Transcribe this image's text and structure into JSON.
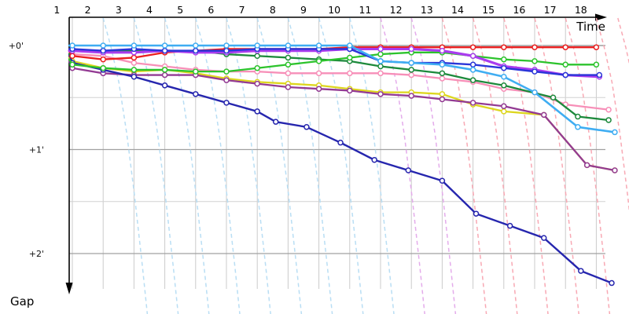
{
  "chart_data": {
    "type": "line",
    "xlabel": "Time",
    "ylabel": "Gap",
    "x_ticks": [
      "1",
      "2",
      "3",
      "4",
      "5",
      "6",
      "7",
      "8",
      "9",
      "10",
      "11",
      "12",
      "13",
      "14",
      "15",
      "16",
      "17",
      "18"
    ],
    "y_ticks": [
      {
        "label": "+0'",
        "seconds": 0
      },
      {
        "label": "+1'",
        "seconds": 60
      },
      {
        "label": "+2'",
        "seconds": 120
      }
    ],
    "y_minor_gridlines_seconds": [
      30,
      90
    ],
    "grid": true,
    "legend": "none",
    "axis_color": "#000000",
    "grid_major_color": "#a0a0a0",
    "grid_minor_color": "#d2d2d2",
    "zero_line_color": "#8a8a8a",
    "x_unit": "lap",
    "y_unit": "gap seconds behind leader",
    "series": [
      {
        "name": "pink",
        "color": "#f78fb8",
        "width": 2.3,
        "points": [
          [
            0.9,
            4
          ],
          [
            1,
            5
          ],
          [
            2,
            6
          ],
          [
            3,
            10
          ],
          [
            4,
            12
          ],
          [
            5,
            14
          ],
          [
            6,
            15
          ],
          [
            7,
            15
          ],
          [
            8,
            16
          ],
          [
            9,
            16
          ],
          [
            10,
            16
          ],
          [
            11,
            16
          ],
          [
            12,
            17
          ],
          [
            13,
            19
          ],
          [
            14,
            21
          ],
          [
            15,
            25
          ],
          [
            16,
            27
          ],
          [
            17,
            34
          ],
          [
            18.4,
            37
          ]
        ]
      },
      {
        "name": "yellow",
        "color": "#ddd61e",
        "width": 2.3,
        "points": [
          [
            0.9,
            7
          ],
          [
            1,
            9
          ],
          [
            2,
            13
          ],
          [
            3,
            15
          ],
          [
            4,
            14
          ],
          [
            5,
            16
          ],
          [
            6,
            19
          ],
          [
            7,
            21
          ],
          [
            8,
            22
          ],
          [
            9,
            23
          ],
          [
            10,
            25
          ],
          [
            11,
            27
          ],
          [
            12,
            27
          ],
          [
            13,
            28
          ],
          [
            14,
            34
          ],
          [
            15,
            38
          ],
          [
            16.3,
            40
          ],
          [
            17.7,
            69
          ],
          [
            18.6,
            72
          ]
        ]
      },
      {
        "name": "purple",
        "color": "#933a93",
        "width": 2.3,
        "points": [
          [
            0.9,
            9
          ],
          [
            1,
            13
          ],
          [
            2,
            16
          ],
          [
            3,
            17
          ],
          [
            4,
            17
          ],
          [
            5,
            17
          ],
          [
            6,
            20
          ],
          [
            7,
            22
          ],
          [
            8,
            24
          ],
          [
            9,
            25
          ],
          [
            10,
            26
          ],
          [
            11,
            28
          ],
          [
            12,
            29
          ],
          [
            13,
            31
          ],
          [
            14,
            33
          ],
          [
            15,
            35
          ],
          [
            16.3,
            40
          ],
          [
            17.7,
            69
          ],
          [
            18.6,
            72
          ]
        ]
      },
      {
        "name": "navy",
        "color": "#2626ae",
        "width": 2.4,
        "points": [
          [
            0.9,
            5
          ],
          [
            1,
            10
          ],
          [
            2,
            14
          ],
          [
            3,
            18
          ],
          [
            4,
            23
          ],
          [
            5,
            28
          ],
          [
            6,
            33
          ],
          [
            7,
            38
          ],
          [
            7.6,
            44
          ],
          [
            8.6,
            47
          ],
          [
            9.7,
            56
          ],
          [
            10.8,
            66
          ],
          [
            11.9,
            72
          ],
          [
            13,
            78
          ],
          [
            14.1,
            97
          ],
          [
            15.2,
            104
          ],
          [
            16.3,
            111
          ],
          [
            17.5,
            130
          ],
          [
            18.5,
            137
          ]
        ]
      },
      {
        "name": "dark-green",
        "color": "#1d8a3c",
        "width": 2.3,
        "points": [
          [
            0.9,
            5
          ],
          [
            1,
            3
          ],
          [
            2,
            3
          ],
          [
            3,
            3
          ],
          [
            4,
            3
          ],
          [
            5,
            3
          ],
          [
            6,
            5
          ],
          [
            7,
            6
          ],
          [
            8,
            7
          ],
          [
            9,
            8
          ],
          [
            10,
            9
          ],
          [
            11,
            12
          ],
          [
            12,
            14
          ],
          [
            13,
            16
          ],
          [
            14,
            20
          ],
          [
            15,
            23
          ],
          [
            16.6,
            30
          ],
          [
            17.4,
            41
          ],
          [
            18.4,
            43
          ]
        ]
      },
      {
        "name": "green",
        "color": "#2cc32c",
        "width": 2.3,
        "points": [
          [
            0.9,
            8
          ],
          [
            1,
            11
          ],
          [
            2,
            13
          ],
          [
            3,
            14
          ],
          [
            4,
            14
          ],
          [
            5,
            15
          ],
          [
            6,
            15
          ],
          [
            7,
            13
          ],
          [
            8,
            11
          ],
          [
            9,
            9
          ],
          [
            10,
            7
          ],
          [
            11,
            5
          ],
          [
            12,
            4
          ],
          [
            13,
            4
          ],
          [
            14,
            6
          ],
          [
            15,
            8
          ],
          [
            16,
            9
          ],
          [
            17,
            11
          ],
          [
            18,
            11
          ]
        ]
      },
      {
        "name": "red",
        "color": "#ea1f1f",
        "width": 2.3,
        "points": [
          [
            0.9,
            3
          ],
          [
            1,
            6
          ],
          [
            2,
            8
          ],
          [
            3,
            7
          ],
          [
            4,
            4
          ],
          [
            5,
            3
          ],
          [
            6,
            2
          ],
          [
            7,
            2
          ],
          [
            8,
            2
          ],
          [
            9,
            2
          ],
          [
            10,
            1
          ],
          [
            11,
            1
          ],
          [
            12,
            1
          ],
          [
            13,
            1
          ],
          [
            14,
            1
          ],
          [
            15,
            1
          ],
          [
            16,
            1
          ],
          [
            17,
            1
          ],
          [
            18,
            1
          ]
        ]
      },
      {
        "name": "violet",
        "color": "#aa3cee",
        "width": 3.2,
        "points": [
          [
            0.9,
            3
          ],
          [
            1,
            3
          ],
          [
            2,
            4
          ],
          [
            3,
            4
          ],
          [
            4,
            3
          ],
          [
            5,
            4
          ],
          [
            6,
            4
          ],
          [
            7,
            3
          ],
          [
            8,
            3
          ],
          [
            9,
            3
          ],
          [
            10,
            2
          ],
          [
            11,
            2
          ],
          [
            12,
            2
          ],
          [
            13,
            3
          ],
          [
            14,
            6
          ],
          [
            15,
            12
          ],
          [
            16,
            14
          ],
          [
            17,
            17
          ],
          [
            18.1,
            18
          ]
        ]
      },
      {
        "name": "blue",
        "color": "#2a35d8",
        "width": 2.4,
        "points": [
          [
            0.9,
            2
          ],
          [
            1,
            2
          ],
          [
            2,
            3
          ],
          [
            3,
            2
          ],
          [
            4,
            3
          ],
          [
            5,
            3
          ],
          [
            6,
            3
          ],
          [
            7,
            2
          ],
          [
            8,
            2
          ],
          [
            9,
            2
          ],
          [
            10,
            2
          ],
          [
            11,
            9
          ],
          [
            12,
            10
          ],
          [
            13,
            10
          ],
          [
            14,
            11
          ],
          [
            15,
            13
          ],
          [
            16,
            15
          ],
          [
            17,
            17
          ],
          [
            18.1,
            17
          ]
        ]
      },
      {
        "name": "sky-blue",
        "color": "#3fadf2",
        "width": 2.6,
        "points": [
          [
            0.9,
            0
          ],
          [
            1,
            0
          ],
          [
            2,
            0
          ],
          [
            3,
            0
          ],
          [
            4,
            0
          ],
          [
            5,
            0
          ],
          [
            6,
            0
          ],
          [
            7,
            0
          ],
          [
            8,
            0
          ],
          [
            9,
            0
          ],
          [
            10,
            0
          ],
          [
            11,
            9
          ],
          [
            12,
            10
          ],
          [
            13,
            11
          ],
          [
            14,
            14
          ],
          [
            15,
            18
          ],
          [
            16,
            27
          ],
          [
            17.4,
            47
          ],
          [
            18.6,
            50
          ]
        ]
      }
    ],
    "dropped_dashed_lines": [
      {
        "color": "#b9def4",
        "name": "dropped-light-blue",
        "start_laps": [
          2,
          3,
          4,
          5,
          6,
          7,
          8,
          9,
          10
        ]
      },
      {
        "color": "#e4aceb",
        "name": "dropped-violet",
        "start_laps": [
          11,
          12
        ]
      },
      {
        "color": "#f8a9b4",
        "name": "dropped-pink",
        "start_laps": [
          13,
          14,
          15,
          16,
          17,
          18,
          18.7,
          19.4
        ]
      }
    ],
    "marker": {
      "shape": "circle",
      "fill": "#ffffff",
      "radius": 3.0
    }
  }
}
